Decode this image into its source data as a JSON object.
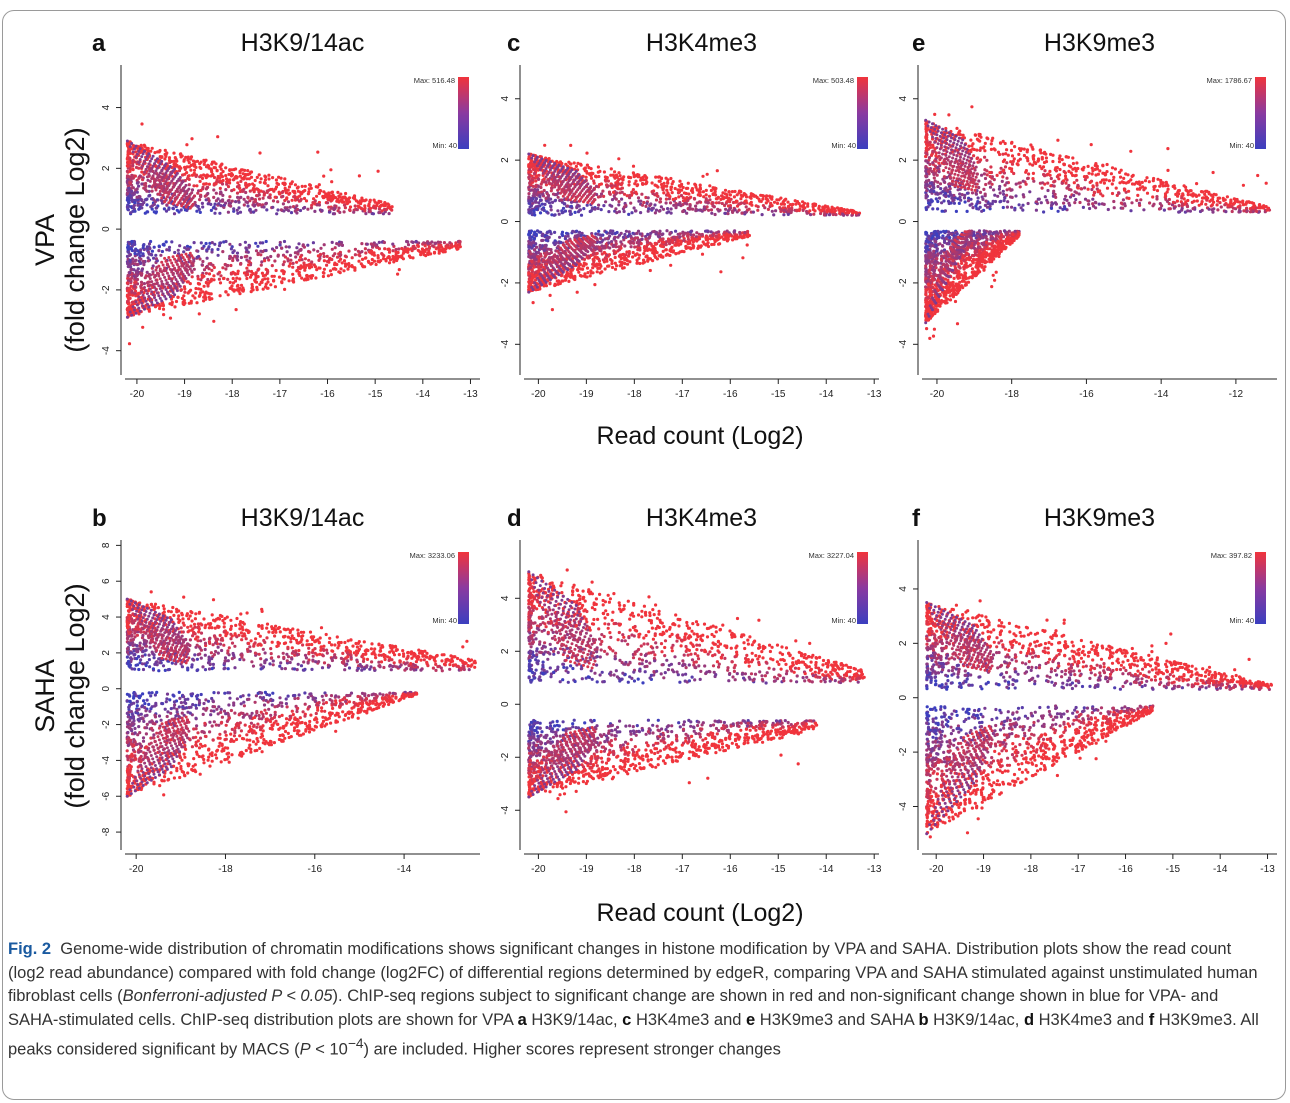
{
  "panels": [
    {
      "letter": "a",
      "title": "H3K9/14ac",
      "row": 0,
      "col": 0,
      "xticks": [
        -20,
        -19,
        -18,
        -17,
        -16,
        -15,
        -14,
        -13
      ],
      "xlim": [
        -20.25,
        -12.8
      ],
      "yticks": [
        -4,
        -2,
        0,
        2,
        4
      ],
      "ylim": [
        -4.8,
        5.4
      ],
      "max": "Max: 516.48",
      "min": "Min: 40"
    },
    {
      "letter": "c",
      "title": "H3K4me3",
      "row": 0,
      "col": 1,
      "xticks": [
        -20,
        -19,
        -18,
        -17,
        -16,
        -15,
        -14,
        -13
      ],
      "xlim": [
        -20.3,
        -12.9
      ],
      "yticks": [
        -4,
        -2,
        0,
        2,
        4
      ],
      "ylim": [
        -5.0,
        5.1
      ],
      "max": "Max: 503.48",
      "min": "Min: 40"
    },
    {
      "letter": "e",
      "title": "H3K9me3",
      "row": 0,
      "col": 2,
      "xticks": [
        -20,
        -18,
        -16,
        -14,
        -12
      ],
      "xlim": [
        -20.4,
        -10.9
      ],
      "yticks": [
        -4,
        -2,
        0,
        2,
        4
      ],
      "ylim": [
        -5.0,
        5.1
      ],
      "max": "Max: 1786.67",
      "min": "Min: 40"
    },
    {
      "letter": "b",
      "title": "H3K9/14ac",
      "row": 1,
      "col": 0,
      "xticks": [
        -20,
        -18,
        -16,
        -14
      ],
      "xlim": [
        -20.25,
        -12.3
      ],
      "yticks": [
        -8,
        -6,
        -4,
        -2,
        0,
        2,
        4,
        6,
        8
      ],
      "ylim": [
        -9.0,
        8.3
      ],
      "max": "Max: 3233.06",
      "min": "Min: 40"
    },
    {
      "letter": "d",
      "title": "H3K4me3",
      "row": 1,
      "col": 1,
      "xticks": [
        -20,
        -19,
        -18,
        -17,
        -16,
        -15,
        -14,
        -13
      ],
      "xlim": [
        -20.3,
        -12.9
      ],
      "yticks": [
        -4,
        -2,
        0,
        2,
        4
      ],
      "ylim": [
        -5.5,
        6.2
      ],
      "max": "Max: 3227.04",
      "min": "Min: 40"
    },
    {
      "letter": "f",
      "title": "H3K9me3",
      "row": 1,
      "col": 2,
      "xticks": [
        -20,
        -19,
        -18,
        -17,
        -16,
        -15,
        -14,
        -13
      ],
      "xlim": [
        -20.3,
        -12.8
      ],
      "yticks": [
        -4,
        -2,
        0,
        2,
        4
      ],
      "ylim": [
        -5.6,
        5.8
      ],
      "max": "Max: 397.82",
      "min": "Min: 40"
    }
  ],
  "row_labels": [
    {
      "line1": "VPA",
      "line2": "(fold change Log2)"
    },
    {
      "line1": "SAHA",
      "line2": "(fold change Log2)"
    }
  ],
  "x_axis_title": "Read count (Log2)",
  "colors": {
    "low": "#3b3fbf",
    "high": "#f0343c",
    "mid": "#8a3aa0"
  },
  "caption": {
    "fig_number": "Fig. 2",
    "text": "Genome-wide distribution of chromatin modifications shows significant changes in histone modification by VPA and SAHA. Distribution plots show the read count (log2 read abundance) compared with fold change (log2FC) of differential regions determined by edgeR, comparing VPA and SAHA stimulated against unstimulated human fibroblast cells (Bonferroni-adjusted P < 0.05). ChIP-seq regions subject to significant change are shown in red and non-significant change shown in blue for VPA- and SAHA-stimulated cells. ChIP-seq distribution plots are shown for VPA a H3K9/14ac, c H3K4me3 and e H3K9me3 and SAHA b H3K9/14ac, d H3K4me3 and f H3K9me3. All peaks considered significant by MACS (P < 10−4) are included. Higher scores represent stronger changes",
    "part1": "Genome-wide distribution of chromatin modifications shows significant changes in histone modification by VPA and SAHA. Distribution plots show the read count (log2 read abundance) compared with fold change (log2FC) of differential regions determined by edgeR, comparing VPA and SAHA stimulated against unstimulated human fibroblast cells (",
    "italic1": "Bonferroni-adjusted P < 0.05",
    "part2": "). ChIP-seq regions subject to significant change are shown in red and non-significant change shown in blue for VPA- and SAHA-stimulated cells. ChIP-seq distribution plots are shown for VPA ",
    "a": "a",
    "a_txt": " H3K9/14ac, ",
    "c": "c",
    "c_txt": " H3K4me3 and ",
    "e": "e",
    "e_txt": " H3K9me3 and SAHA ",
    "b": "b",
    "b_txt": " H3K9/14ac, ",
    "d": "d",
    "d_txt": " H3K4me3 and ",
    "f": "f",
    "f_txt": " H3K9me3. All peaks considered significant by MACS (",
    "italic2": "P",
    "part3": " < 10",
    "sup": "−4",
    "part4": ") are included. Higher scores represent stronger changes"
  },
  "chart_data": [
    {
      "type": "scatter",
      "title": "H3K9/14ac",
      "panel": "a",
      "row_label": "VPA (fold change Log2)",
      "xlabel": "Read count (Log2)",
      "ylabel": "VPA (fold change Log2)",
      "xlim": [
        -20.25,
        -12.8
      ],
      "ylim": [
        -4.8,
        5.4
      ],
      "colorbar": {
        "max": 516.48,
        "min": 40,
        "colors": [
          "#3b3fbf",
          "#f0343c"
        ]
      },
      "clusters": [
        {
          "sign": "up",
          "x_range": [
            -20.2,
            -14.6
          ],
          "y_edge_at_x_min": 2.9,
          "y_floor": 0.5
        },
        {
          "sign": "down",
          "x_range": [
            -20.2,
            -13.2
          ],
          "y_edge_at_x_min": -2.9,
          "y_floor": -0.4
        }
      ]
    },
    {
      "type": "scatter",
      "title": "H3K4me3",
      "panel": "c",
      "xlabel": "Read count (Log2)",
      "xlim": [
        -20.3,
        -12.9
      ],
      "ylim": [
        -5.0,
        5.1
      ],
      "colorbar": {
        "max": 503.48,
        "min": 40,
        "colors": [
          "#3b3fbf",
          "#f0343c"
        ]
      },
      "clusters": [
        {
          "sign": "up",
          "x_range": [
            -20.2,
            -13.3
          ],
          "y_edge_at_x_min": 2.2,
          "y_floor": 0.2
        },
        {
          "sign": "down",
          "x_range": [
            -20.2,
            -15.6
          ],
          "y_edge_at_x_min": -2.3,
          "y_floor": -0.3
        }
      ]
    },
    {
      "type": "scatter",
      "title": "H3K9me3",
      "panel": "e",
      "xlabel": "Read count (Log2)",
      "xlim": [
        -20.4,
        -10.9
      ],
      "ylim": [
        -5.0,
        5.1
      ],
      "colorbar": {
        "max": 1786.67,
        "min": 40,
        "colors": [
          "#3b3fbf",
          "#f0343c"
        ]
      },
      "clusters": [
        {
          "sign": "up",
          "x_range": [
            -20.3,
            -11.1
          ],
          "y_edge_at_x_min": 3.3,
          "y_floor": 0.3
        },
        {
          "sign": "down",
          "x_range": [
            -20.3,
            -17.8
          ],
          "y_edge_at_x_min": -3.3,
          "y_floor": -0.3
        }
      ]
    },
    {
      "type": "scatter",
      "title": "H3K9/14ac",
      "panel": "b",
      "row_label": "SAHA (fold change Log2)",
      "xlabel": "Read count (Log2)",
      "ylabel": "SAHA (fold change Log2)",
      "xlim": [
        -20.25,
        -12.3
      ],
      "ylim": [
        -9.0,
        8.3
      ],
      "colorbar": {
        "max": 3233.06,
        "min": 40,
        "colors": [
          "#3b3fbf",
          "#f0343c"
        ]
      },
      "clusters": [
        {
          "sign": "up",
          "x_range": [
            -20.2,
            -12.4
          ],
          "y_edge_at_x_min": 5.0,
          "y_floor": 1.0
        },
        {
          "sign": "down",
          "x_range": [
            -20.2,
            -13.7
          ],
          "y_edge_at_x_min": -6.0,
          "y_floor": -0.2
        }
      ]
    },
    {
      "type": "scatter",
      "title": "H3K4me3",
      "panel": "d",
      "xlabel": "Read count (Log2)",
      "xlim": [
        -20.3,
        -12.9
      ],
      "ylim": [
        -5.5,
        6.2
      ],
      "colorbar": {
        "max": 3227.04,
        "min": 40,
        "colors": [
          "#3b3fbf",
          "#f0343c"
        ]
      },
      "clusters": [
        {
          "sign": "up",
          "x_range": [
            -20.2,
            -13.2
          ],
          "y_edge_at_x_min": 5.0,
          "y_floor": 0.8
        },
        {
          "sign": "down",
          "x_range": [
            -20.2,
            -14.2
          ],
          "y_edge_at_x_min": -3.5,
          "y_floor": -0.6
        }
      ]
    },
    {
      "type": "scatter",
      "title": "H3K9me3",
      "panel": "f",
      "xlabel": "Read count (Log2)",
      "xlim": [
        -20.3,
        -12.8
      ],
      "ylim": [
        -5.6,
        5.8
      ],
      "colorbar": {
        "max": 397.82,
        "min": 40,
        "colors": [
          "#3b3fbf",
          "#f0343c"
        ]
      },
      "clusters": [
        {
          "sign": "up",
          "x_range": [
            -20.2,
            -12.9
          ],
          "y_edge_at_x_min": 3.5,
          "y_floor": 0.3
        },
        {
          "sign": "down",
          "x_range": [
            -20.2,
            -15.4
          ],
          "y_edge_at_x_min": -5.0,
          "y_floor": -0.3
        }
      ]
    }
  ]
}
